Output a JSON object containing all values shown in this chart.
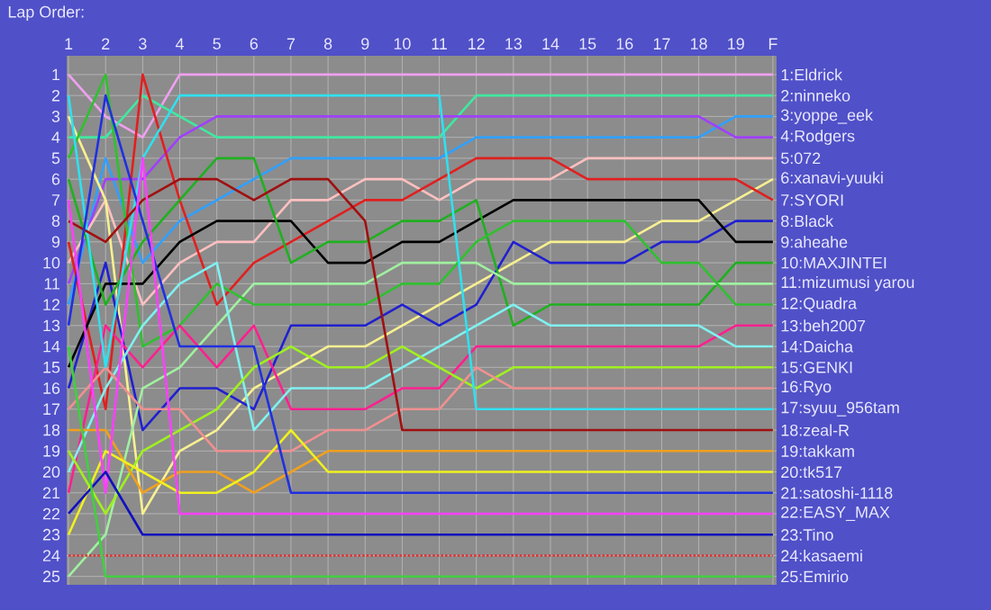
{
  "chart_data": {
    "type": "line",
    "title": "Lap Order:",
    "categories": [
      "1",
      "2",
      "3",
      "4",
      "5",
      "6",
      "7",
      "8",
      "9",
      "10",
      "11",
      "12",
      "13",
      "14",
      "15",
      "16",
      "17",
      "18",
      "19",
      "F"
    ],
    "ylim": [
      25.4,
      0.1
    ],
    "yticks": [
      1,
      2,
      3,
      4,
      5,
      6,
      7,
      8,
      9,
      10,
      11,
      12,
      13,
      14,
      15,
      16,
      17,
      18,
      19,
      20,
      21,
      22,
      23,
      24,
      25
    ],
    "grid": true,
    "legend": false,
    "marker": "none",
    "line_style": "solid",
    "series": [
      {
        "name": "1:Eldrick",
        "color": "#f0a0f0",
        "values": [
          1,
          3,
          4,
          1,
          1,
          1,
          1,
          1,
          1,
          1,
          1,
          1,
          1,
          1,
          1,
          1,
          1,
          1,
          1,
          1
        ]
      },
      {
        "name": "2:ninneko",
        "color": "#40e8a0",
        "values": [
          4,
          4,
          2,
          3,
          4,
          4,
          4,
          4,
          4,
          4,
          4,
          2,
          2,
          2,
          2,
          2,
          2,
          2,
          2,
          2
        ]
      },
      {
        "name": "3:yoppe_eek",
        "color": "#30a0ff",
        "values": [
          12,
          5,
          10,
          8,
          7,
          6,
          5,
          5,
          5,
          5,
          5,
          4,
          4,
          4,
          4,
          4,
          4,
          4,
          3,
          3
        ]
      },
      {
        "name": "4:Rodgers",
        "color": "#a040ff",
        "values": [
          11,
          6,
          6,
          4,
          3,
          3,
          3,
          3,
          3,
          3,
          3,
          3,
          3,
          3,
          3,
          3,
          3,
          3,
          4,
          4
        ]
      },
      {
        "name": "5:072",
        "color": "#ffc0c0",
        "values": [
          10,
          7,
          12,
          10,
          9,
          9,
          7,
          7,
          6,
          6,
          7,
          6,
          6,
          6,
          5,
          5,
          5,
          5,
          5,
          5
        ]
      },
      {
        "name": "6:xanavi-yuuki",
        "color": "#f8f090",
        "values": [
          3,
          7,
          22,
          19,
          18,
          16,
          15,
          14,
          14,
          13,
          12,
          11,
          10,
          9,
          9,
          9,
          8,
          8,
          7,
          6
        ]
      },
      {
        "name": "7:SYORI",
        "color": "#e02020",
        "values": [
          9,
          17,
          1,
          7,
          12,
          10,
          9,
          8,
          7,
          7,
          6,
          5,
          5,
          5,
          6,
          6,
          6,
          6,
          6,
          7
        ]
      },
      {
        "name": "8:Black",
        "color": "#2020d0",
        "values": [
          16,
          10,
          18,
          16,
          16,
          17,
          13,
          13,
          13,
          12,
          13,
          12,
          9,
          10,
          10,
          10,
          9,
          9,
          8,
          8
        ]
      },
      {
        "name": "9:aheahe",
        "color": "#000000",
        "values": [
          15,
          11,
          11,
          9,
          8,
          8,
          8,
          10,
          10,
          9,
          9,
          8,
          7,
          7,
          7,
          7,
          7,
          7,
          9,
          9
        ]
      },
      {
        "name": "10:MAXJINTEI",
        "color": "#20b020",
        "values": [
          6,
          12,
          9,
          7,
          5,
          5,
          10,
          9,
          9,
          8,
          8,
          7,
          13,
          12,
          12,
          12,
          12,
          12,
          10,
          10
        ]
      },
      {
        "name": "11:mizumusi yarou",
        "color": "#a0f0a0",
        "values": [
          25,
          23,
          16,
          15,
          13,
          11,
          11,
          11,
          11,
          10,
          10,
          10,
          11,
          11,
          11,
          11,
          11,
          11,
          11,
          11
        ]
      },
      {
        "name": "12:Quadra",
        "color": "#30c030",
        "values": [
          5,
          1,
          14,
          13,
          11,
          12,
          12,
          12,
          12,
          11,
          11,
          9,
          8,
          8,
          8,
          8,
          10,
          10,
          12,
          12
        ]
      },
      {
        "name": "13:beh2007",
        "color": "#ff2090",
        "values": [
          21,
          13,
          15,
          13,
          15,
          13,
          17,
          17,
          17,
          16,
          16,
          14,
          14,
          14,
          14,
          14,
          14,
          14,
          13,
          13
        ]
      },
      {
        "name": "14:Daicha",
        "color": "#80f0f0",
        "values": [
          20,
          16,
          13,
          11,
          10,
          18,
          16,
          16,
          16,
          15,
          14,
          13,
          12,
          13,
          13,
          13,
          13,
          13,
          14,
          14
        ]
      },
      {
        "name": "15:GENKI",
        "color": "#a0f020",
        "values": [
          19,
          22,
          19,
          18,
          17,
          15,
          14,
          15,
          15,
          14,
          15,
          16,
          15,
          15,
          15,
          15,
          15,
          15,
          15,
          15
        ]
      },
      {
        "name": "16:Ryo",
        "color": "#f09090",
        "values": [
          17,
          15,
          17,
          17,
          19,
          19,
          19,
          18,
          18,
          17,
          17,
          15,
          16,
          16,
          16,
          16,
          16,
          16,
          16,
          16
        ]
      },
      {
        "name": "17:syuu_956tam",
        "color": "#30e0f0",
        "values": [
          2,
          15,
          5,
          2,
          2,
          2,
          2,
          2,
          2,
          2,
          2,
          17,
          17,
          17,
          17,
          17,
          17,
          17,
          17,
          17
        ]
      },
      {
        "name": "18:zeal-R",
        "color": "#a01010",
        "values": [
          8,
          9,
          7,
          6,
          6,
          7,
          6,
          6,
          8,
          18,
          18,
          18,
          18,
          18,
          18,
          18,
          18,
          18,
          18,
          18
        ]
      },
      {
        "name": "19:takkam",
        "color": "#f0a020",
        "values": [
          18,
          18,
          21,
          20,
          20,
          21,
          20,
          19,
          19,
          19,
          19,
          19,
          19,
          19,
          19,
          19,
          19,
          19,
          19,
          19
        ]
      },
      {
        "name": "20:tk517",
        "color": "#f0f020",
        "values": [
          23,
          19,
          20,
          21,
          21,
          20,
          18,
          20,
          20,
          20,
          20,
          20,
          20,
          20,
          20,
          20,
          20,
          20,
          20,
          20
        ]
      },
      {
        "name": "21:satoshi-1118",
        "color": "#2030e0",
        "values": [
          13,
          2,
          8,
          14,
          14,
          14,
          21,
          21,
          21,
          21,
          21,
          21,
          21,
          21,
          21,
          21,
          21,
          21,
          21,
          21
        ]
      },
      {
        "name": "22:EASY_MAX",
        "color": "#ff40ff",
        "values": [
          7,
          21,
          5,
          22,
          22,
          22,
          22,
          22,
          22,
          22,
          22,
          22,
          22,
          22,
          22,
          22,
          22,
          22,
          22,
          22
        ]
      },
      {
        "name": "23:Tino",
        "color": "#1010c0",
        "values": [
          22,
          20,
          23,
          23,
          23,
          23,
          23,
          23,
          23,
          23,
          23,
          23,
          23,
          23,
          23,
          23,
          23,
          23,
          23,
          23
        ]
      },
      {
        "name": "24:kasaemi",
        "color": "#e03030",
        "line_style": "dotted",
        "values": [
          24,
          24,
          24,
          24,
          24,
          24,
          24,
          24,
          24,
          24,
          24,
          24,
          24,
          24,
          24,
          24,
          24,
          24,
          24,
          24
        ]
      },
      {
        "name": "25:Emirio",
        "color": "#40d040",
        "values": [
          14,
          25,
          25,
          25,
          25,
          25,
          25,
          25,
          25,
          25,
          25,
          25,
          25,
          25,
          25,
          25,
          25,
          25,
          25,
          25
        ]
      }
    ]
  }
}
